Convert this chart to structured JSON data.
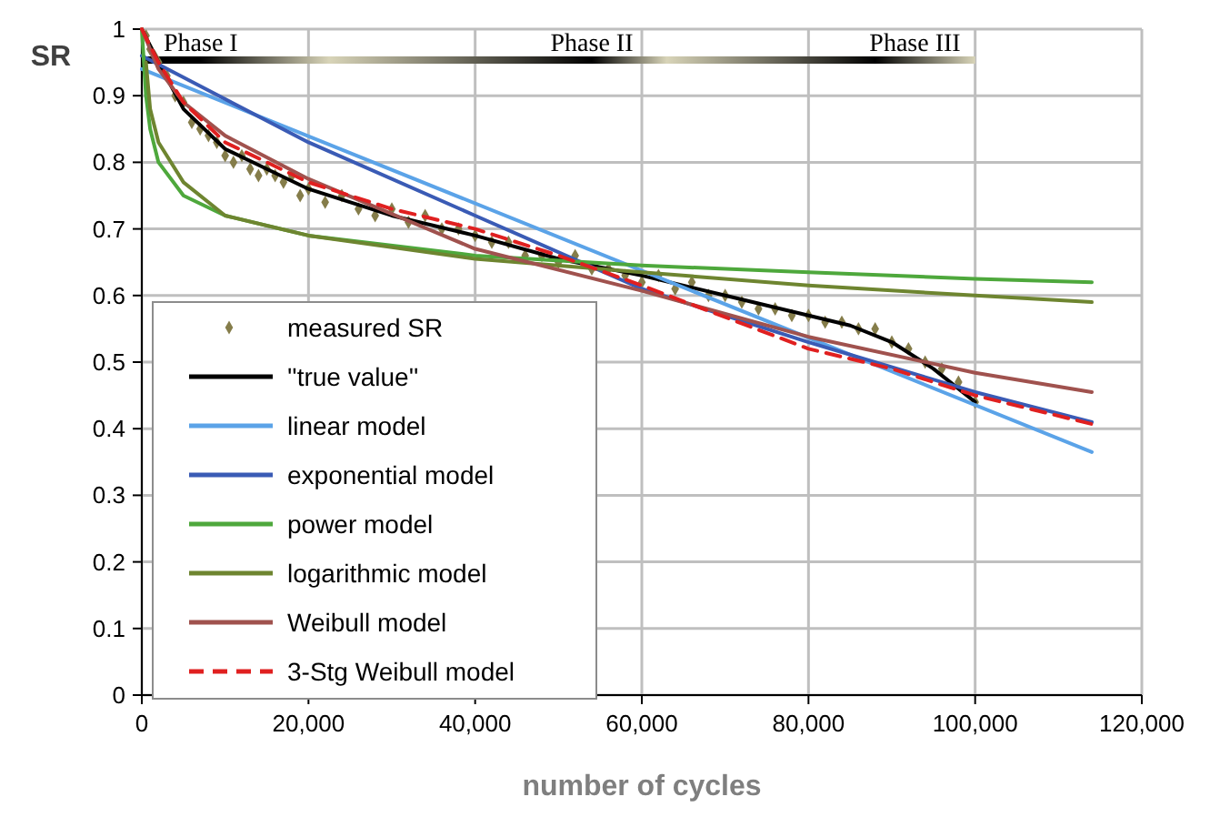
{
  "chart_data": {
    "type": "line",
    "xlabel": "number of cycles",
    "ylabel": "SR",
    "xlim": [
      0,
      120000
    ],
    "ylim": [
      0,
      1
    ],
    "xticks": [
      0,
      {
        "value": 20000,
        "label": "20,000"
      },
      {
        "value": 40000,
        "label": "40,000"
      },
      {
        "value": 60000,
        "label": "60,000"
      },
      {
        "value": 80000,
        "label": "80,000"
      },
      {
        "value": 100000,
        "label": "100,000"
      },
      {
        "value": 120000,
        "label": "120,000"
      }
    ],
    "yticks": [
      0,
      0.1,
      0.2,
      0.3,
      0.4,
      0.5,
      0.6,
      0.7,
      0.8,
      0.9,
      1
    ],
    "grid": true,
    "legend": "bottom left",
    "annotations": [
      "Phase I",
      "Phase II",
      "Phase III"
    ],
    "series": [
      {
        "name": "measured SR",
        "type": "scatter",
        "marker": "diamond",
        "color": "#857d4a",
        "x": [
          500,
          1000,
          1500,
          2000,
          3000,
          4000,
          5000,
          6000,
          7000,
          8000,
          9000,
          10000,
          11000,
          12000,
          13000,
          14000,
          15000,
          16000,
          17000,
          18000,
          19000,
          20000,
          22000,
          24000,
          26000,
          28000,
          30000,
          32000,
          34000,
          36000,
          38000,
          40000,
          42000,
          44000,
          46000,
          48000,
          50000,
          52000,
          54000,
          56000,
          58000,
          60000,
          62000,
          64000,
          66000,
          68000,
          70000,
          72000,
          74000,
          76000,
          78000,
          80000,
          82000,
          84000,
          86000,
          88000,
          90000,
          92000,
          94000,
          96000,
          98000,
          100000
        ],
        "values": [
          0.99,
          0.97,
          0.96,
          0.95,
          0.93,
          0.9,
          0.89,
          0.86,
          0.85,
          0.84,
          0.83,
          0.81,
          0.8,
          0.81,
          0.79,
          0.78,
          0.79,
          0.78,
          0.77,
          0.78,
          0.75,
          0.76,
          0.74,
          0.75,
          0.73,
          0.72,
          0.73,
          0.71,
          0.72,
          0.7,
          0.7,
          0.69,
          0.68,
          0.68,
          0.66,
          0.66,
          0.65,
          0.66,
          0.64,
          0.64,
          0.63,
          0.62,
          0.63,
          0.61,
          0.62,
          0.6,
          0.6,
          0.59,
          0.58,
          0.58,
          0.57,
          0.57,
          0.56,
          0.56,
          0.55,
          0.55,
          0.53,
          0.52,
          0.5,
          0.49,
          0.47,
          0.44
        ]
      },
      {
        "name": "''true value''",
        "color": "#000000",
        "x": [
          0,
          2000,
          5000,
          10000,
          15000,
          20000,
          30000,
          40000,
          50000,
          60000,
          70000,
          80000,
          85000,
          90000,
          95000,
          100000
        ],
        "values": [
          1,
          0.95,
          0.88,
          0.82,
          0.79,
          0.76,
          0.72,
          0.69,
          0.655,
          0.63,
          0.6,
          0.57,
          0.555,
          0.53,
          0.49,
          0.44
        ]
      },
      {
        "name": "linear model",
        "color": "#5ba3e8",
        "x": [
          0,
          114000
        ],
        "values": [
          0.94,
          0.365
        ]
      },
      {
        "name": "exponential model",
        "color": "#3a5bb5",
        "x": [
          0,
          20000,
          40000,
          60000,
          80000,
          100000,
          114000
        ],
        "values": [
          0.96,
          0.83,
          0.72,
          0.61,
          0.53,
          0.455,
          0.41
        ]
      },
      {
        "name": "power model",
        "color": "#4ea83c",
        "x": [
          0,
          500,
          1000,
          2000,
          5000,
          10000,
          20000,
          40000,
          60000,
          80000,
          100000,
          114000
        ],
        "values": [
          1,
          0.9,
          0.85,
          0.8,
          0.75,
          0.72,
          0.69,
          0.66,
          0.645,
          0.635,
          0.625,
          0.62
        ]
      },
      {
        "name": "logarithmic model",
        "color": "#6e8530",
        "x": [
          500,
          1000,
          2000,
          5000,
          10000,
          20000,
          40000,
          60000,
          80000,
          100000,
          114000
        ],
        "values": [
          0.95,
          0.88,
          0.83,
          0.77,
          0.72,
          0.69,
          0.655,
          0.635,
          0.615,
          0.6,
          0.59
        ]
      },
      {
        "name": "Weibull model",
        "color": "#a0524e",
        "x": [
          0,
          2000,
          5000,
          10000,
          20000,
          40000,
          60000,
          80000,
          100000,
          114000
        ],
        "values": [
          1,
          0.94,
          0.89,
          0.84,
          0.775,
          0.67,
          0.607,
          0.538,
          0.484,
          0.455
        ]
      },
      {
        "name": "3-Stg Weibull model",
        "color": "#e02020",
        "line_style": "dashed",
        "x": [
          0,
          2000,
          5000,
          10000,
          20000,
          30000,
          40000,
          50000,
          60000,
          80000,
          90000,
          100000,
          114000
        ],
        "values": [
          1,
          0.95,
          0.89,
          0.83,
          0.77,
          0.73,
          0.7,
          0.66,
          0.615,
          0.52,
          0.49,
          0.45,
          0.407
        ]
      }
    ]
  }
}
